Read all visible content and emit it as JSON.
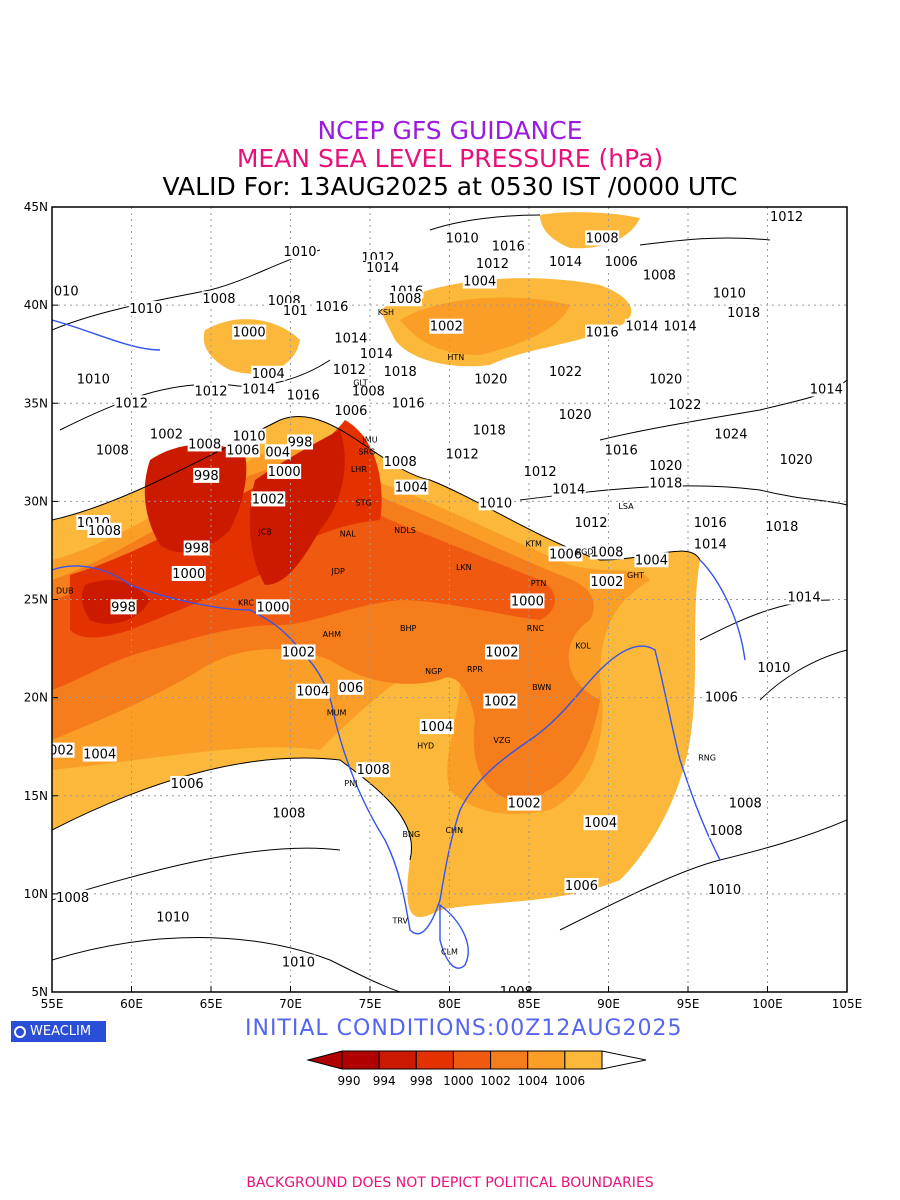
{
  "header": {
    "line1": "NCEP GFS GUIDANCE",
    "line2": "MEAN SEA LEVEL PRESSURE (hPa)",
    "line3": "VALID For: 13AUG2025 at 0530 IST /0000 UTC"
  },
  "map": {
    "lon_range": [
      55,
      105
    ],
    "lat_range": [
      5,
      45
    ],
    "x_ticks": [
      "55E",
      "60E",
      "65E",
      "70E",
      "75E",
      "80E",
      "85E",
      "90E",
      "95E",
      "100E",
      "105E"
    ],
    "y_ticks": [
      "45N",
      "40N",
      "35N",
      "30N",
      "25N",
      "20N",
      "15N",
      "10N",
      "5N"
    ],
    "grid": "dotted",
    "coastline_color": "#3355ee",
    "fill_colors": [
      "#b00000",
      "#cc1a00",
      "#e33200",
      "#f05a10",
      "#f57d1c",
      "#fa9e28",
      "#fbb83a"
    ],
    "contour_labels": [
      {
        "v": "1012",
        "lon": 101.2,
        "lat": 44.5
      },
      {
        "v": "1010",
        "lon": 80.8,
        "lat": 43.4
      },
      {
        "v": "1016",
        "lon": 83.7,
        "lat": 43.0
      },
      {
        "v": "1008",
        "lon": 89.6,
        "lat": 43.4
      },
      {
        "v": "1010",
        "lon": 70.6,
        "lat": 42.7
      },
      {
        "v": "1012",
        "lon": 75.5,
        "lat": 42.4
      },
      {
        "v": "1014",
        "lon": 75.8,
        "lat": 41.9
      },
      {
        "v": "1012",
        "lon": 82.7,
        "lat": 42.1
      },
      {
        "v": "1014",
        "lon": 87.3,
        "lat": 42.2
      },
      {
        "v": "1006",
        "lon": 90.8,
        "lat": 42.2
      },
      {
        "v": "1004",
        "lon": 81.9,
        "lat": 41.2
      },
      {
        "v": "1008",
        "lon": 93.2,
        "lat": 41.5
      },
      {
        "v": "010",
        "lon": 55.9,
        "lat": 40.7
      },
      {
        "v": "1010",
        "lon": 60.9,
        "lat": 39.8
      },
      {
        "v": "1008",
        "lon": 65.5,
        "lat": 40.3
      },
      {
        "v": "1008",
        "lon": 69.6,
        "lat": 40.2
      },
      {
        "v": "1016",
        "lon": 77.3,
        "lat": 40.7
      },
      {
        "v": "1008",
        "lon": 77.2,
        "lat": 40.3
      },
      {
        "v": "101",
        "lon": 70.3,
        "lat": 39.7
      },
      {
        "v": "1016",
        "lon": 72.6,
        "lat": 39.9
      },
      {
        "v": "1010",
        "lon": 97.6,
        "lat": 40.6
      },
      {
        "v": "1018",
        "lon": 98.5,
        "lat": 39.6
      },
      {
        "v": "1002",
        "lon": 79.8,
        "lat": 38.9
      },
      {
        "v": "1016",
        "lon": 89.6,
        "lat": 38.6
      },
      {
        "v": "1014",
        "lon": 92.1,
        "lat": 38.9
      },
      {
        "v": "1014",
        "lon": 94.5,
        "lat": 38.9
      },
      {
        "v": "1000",
        "lon": 67.4,
        "lat": 38.6
      },
      {
        "v": "1014",
        "lon": 73.8,
        "lat": 38.3
      },
      {
        "v": "1014",
        "lon": 75.4,
        "lat": 37.5
      },
      {
        "v": "1004",
        "lon": 68.6,
        "lat": 36.5
      },
      {
        "v": "1012",
        "lon": 73.7,
        "lat": 36.7
      },
      {
        "v": "1018",
        "lon": 76.9,
        "lat": 36.6
      },
      {
        "v": "1020",
        "lon": 82.6,
        "lat": 36.2
      },
      {
        "v": "1022",
        "lon": 87.3,
        "lat": 36.6
      },
      {
        "v": "1020",
        "lon": 93.6,
        "lat": 36.2
      },
      {
        "v": "1014",
        "lon": 103.7,
        "lat": 35.7
      },
      {
        "v": "1010",
        "lon": 57.6,
        "lat": 36.2
      },
      {
        "v": "1012",
        "lon": 65.0,
        "lat": 35.6
      },
      {
        "v": "1014",
        "lon": 68.0,
        "lat": 35.7
      },
      {
        "v": "1012",
        "lon": 60.0,
        "lat": 35.0
      },
      {
        "v": "1016",
        "lon": 70.8,
        "lat": 35.4
      },
      {
        "v": "1008",
        "lon": 74.9,
        "lat": 35.6
      },
      {
        "v": "1016",
        "lon": 77.4,
        "lat": 35.0
      },
      {
        "v": "1006",
        "lon": 73.8,
        "lat": 34.6
      },
      {
        "v": "1022",
        "lon": 94.8,
        "lat": 34.9
      },
      {
        "v": "1020",
        "lon": 87.9,
        "lat": 34.4
      },
      {
        "v": "1018",
        "lon": 82.5,
        "lat": 33.6
      },
      {
        "v": "1024",
        "lon": 97.7,
        "lat": 33.4
      },
      {
        "v": "1002",
        "lon": 62.2,
        "lat": 33.4
      },
      {
        "v": "1008",
        "lon": 64.6,
        "lat": 32.9
      },
      {
        "v": "1010",
        "lon": 67.4,
        "lat": 33.3
      },
      {
        "v": "998",
        "lon": 70.6,
        "lat": 33.0
      },
      {
        "v": "1006",
        "lon": 67.0,
        "lat": 32.6
      },
      {
        "v": "004",
        "lon": 69.2,
        "lat": 32.5
      },
      {
        "v": "1008",
        "lon": 58.8,
        "lat": 32.6
      },
      {
        "v": "1012",
        "lon": 80.8,
        "lat": 32.4
      },
      {
        "v": "1016",
        "lon": 90.8,
        "lat": 32.6
      },
      {
        "v": "1008",
        "lon": 76.9,
        "lat": 32.0
      },
      {
        "v": "1000",
        "lon": 69.6,
        "lat": 31.5
      },
      {
        "v": "1012",
        "lon": 85.7,
        "lat": 31.5
      },
      {
        "v": "1020",
        "lon": 93.6,
        "lat": 31.8
      },
      {
        "v": "1020",
        "lon": 101.8,
        "lat": 32.1
      },
      {
        "v": "998",
        "lon": 64.7,
        "lat": 31.3
      },
      {
        "v": "1014",
        "lon": 87.5,
        "lat": 30.6
      },
      {
        "v": "1018",
        "lon": 93.6,
        "lat": 30.9
      },
      {
        "v": "1004",
        "lon": 77.6,
        "lat": 30.7
      },
      {
        "v": "1002",
        "lon": 68.6,
        "lat": 30.1
      },
      {
        "v": "1010",
        "lon": 82.9,
        "lat": 29.9
      },
      {
        "v": "1010",
        "lon": 57.6,
        "lat": 28.9
      },
      {
        "v": "1008",
        "lon": 58.3,
        "lat": 28.5
      },
      {
        "v": "1012",
        "lon": 88.9,
        "lat": 28.9
      },
      {
        "v": "1016",
        "lon": 96.4,
        "lat": 28.9
      },
      {
        "v": "1018",
        "lon": 100.9,
        "lat": 28.7
      },
      {
        "v": "998",
        "lon": 64.1,
        "lat": 27.6
      },
      {
        "v": "1006",
        "lon": 87.3,
        "lat": 27.3
      },
      {
        "v": "1008",
        "lon": 89.9,
        "lat": 27.4
      },
      {
        "v": "1004",
        "lon": 92.7,
        "lat": 27.0
      },
      {
        "v": "1014",
        "lon": 96.4,
        "lat": 27.8
      },
      {
        "v": "1000",
        "lon": 63.6,
        "lat": 26.3
      },
      {
        "v": "1002",
        "lon": 89.9,
        "lat": 25.9
      },
      {
        "v": "998",
        "lon": 59.5,
        "lat": 24.6
      },
      {
        "v": "1000",
        "lon": 68.9,
        "lat": 24.6
      },
      {
        "v": "1000",
        "lon": 84.9,
        "lat": 24.9
      },
      {
        "v": "1014",
        "lon": 102.3,
        "lat": 25.1
      },
      {
        "v": "1002",
        "lon": 70.5,
        "lat": 22.3
      },
      {
        "v": "1002",
        "lon": 83.3,
        "lat": 22.3
      },
      {
        "v": "1010",
        "lon": 100.4,
        "lat": 21.5
      },
      {
        "v": "1004",
        "lon": 71.4,
        "lat": 20.3
      },
      {
        "v": "006",
        "lon": 73.8,
        "lat": 20.5
      },
      {
        "v": "1002",
        "lon": 83.2,
        "lat": 19.8
      },
      {
        "v": "1006",
        "lon": 97.1,
        "lat": 20.0
      },
      {
        "v": "1004",
        "lon": 79.2,
        "lat": 18.5
      },
      {
        "v": "002",
        "lon": 55.6,
        "lat": 17.3
      },
      {
        "v": "1004",
        "lon": 58.0,
        "lat": 17.1
      },
      {
        "v": "1008",
        "lon": 75.2,
        "lat": 16.3
      },
      {
        "v": "1006",
        "lon": 63.5,
        "lat": 15.6
      },
      {
        "v": "1002",
        "lon": 84.7,
        "lat": 14.6
      },
      {
        "v": "1008",
        "lon": 98.6,
        "lat": 14.6
      },
      {
        "v": "1008",
        "lon": 69.9,
        "lat": 14.1
      },
      {
        "v": "1004",
        "lon": 89.5,
        "lat": 13.6
      },
      {
        "v": "1008",
        "lon": 97.4,
        "lat": 13.2
      },
      {
        "v": "1006",
        "lon": 88.3,
        "lat": 10.4
      },
      {
        "v": "1010",
        "lon": 97.3,
        "lat": 10.2
      },
      {
        "v": "1008",
        "lon": 56.3,
        "lat": 9.8
      },
      {
        "v": "1010",
        "lon": 62.6,
        "lat": 8.8
      },
      {
        "v": "1010",
        "lon": 70.5,
        "lat": 6.5
      },
      {
        "v": "1008",
        "lon": 84.2,
        "lat": 5.0
      }
    ],
    "stations": [
      {
        "n": "KSH",
        "lon": 76.0,
        "lat": 39.5
      },
      {
        "n": "HTN",
        "lon": 80.4,
        "lat": 37.2
      },
      {
        "n": "GLT",
        "lon": 74.4,
        "lat": 35.9
      },
      {
        "n": "SRG",
        "lon": 74.8,
        "lat": 32.4
      },
      {
        "n": "JMU",
        "lon": 75.0,
        "lat": 33.0
      },
      {
        "n": "LHR",
        "lon": 74.3,
        "lat": 31.5
      },
      {
        "n": "STG",
        "lon": 74.6,
        "lat": 29.8
      },
      {
        "n": "NDLS",
        "lon": 77.2,
        "lat": 28.4
      },
      {
        "n": "JCB",
        "lon": 68.4,
        "lat": 28.3
      },
      {
        "n": "NAL",
        "lon": 73.6,
        "lat": 28.2
      },
      {
        "n": "LKN",
        "lon": 80.9,
        "lat": 26.5
      },
      {
        "n": "JDP",
        "lon": 73.0,
        "lat": 26.3
      },
      {
        "n": "PTN",
        "lon": 85.6,
        "lat": 25.7
      },
      {
        "n": "DUB",
        "lon": 55.8,
        "lat": 25.3
      },
      {
        "n": "KRC",
        "lon": 67.2,
        "lat": 24.7
      },
      {
        "n": "RNC",
        "lon": 85.4,
        "lat": 23.4
      },
      {
        "n": "AHM",
        "lon": 72.6,
        "lat": 23.1
      },
      {
        "n": "BHP",
        "lon": 77.4,
        "lat": 23.4
      },
      {
        "n": "KOL",
        "lon": 88.4,
        "lat": 22.5
      },
      {
        "n": "NGP",
        "lon": 79.0,
        "lat": 21.2
      },
      {
        "n": "RPR",
        "lon": 81.6,
        "lat": 21.3
      },
      {
        "n": "BWN",
        "lon": 85.8,
        "lat": 20.4
      },
      {
        "n": "MUM",
        "lon": 72.9,
        "lat": 19.1
      },
      {
        "n": "HYD",
        "lon": 78.5,
        "lat": 17.4
      },
      {
        "n": "VZG",
        "lon": 83.3,
        "lat": 17.7
      },
      {
        "n": "PNJ",
        "lon": 73.8,
        "lat": 15.5
      },
      {
        "n": "CHN",
        "lon": 80.3,
        "lat": 13.1
      },
      {
        "n": "BNG",
        "lon": 77.6,
        "lat": 12.9
      },
      {
        "n": "TRV",
        "lon": 76.9,
        "lat": 8.5
      },
      {
        "n": "CLM",
        "lon": 80.0,
        "lat": 6.9
      },
      {
        "n": "GHT",
        "lon": 91.7,
        "lat": 26.1
      },
      {
        "n": "LSA",
        "lon": 91.1,
        "lat": 29.6
      },
      {
        "n": "RNG",
        "lon": 96.2,
        "lat": 16.8
      },
      {
        "n": "BGD",
        "lon": 88.5,
        "lat": 27.3
      },
      {
        "n": "KTM",
        "lon": 85.3,
        "lat": 27.7
      }
    ]
  },
  "legend": {
    "ticks": [
      "990",
      "994",
      "998",
      "1000",
      "1002",
      "1004",
      "1006"
    ]
  },
  "branding": {
    "logo_text": "WEACLIM",
    "logo_icon": "circle-icon"
  },
  "initial_conditions": "INITIAL CONDITIONS:00Z12AUG2025",
  "footer": "BACKGROUND DOES NOT DEPICT POLITICAL BOUNDARIES"
}
